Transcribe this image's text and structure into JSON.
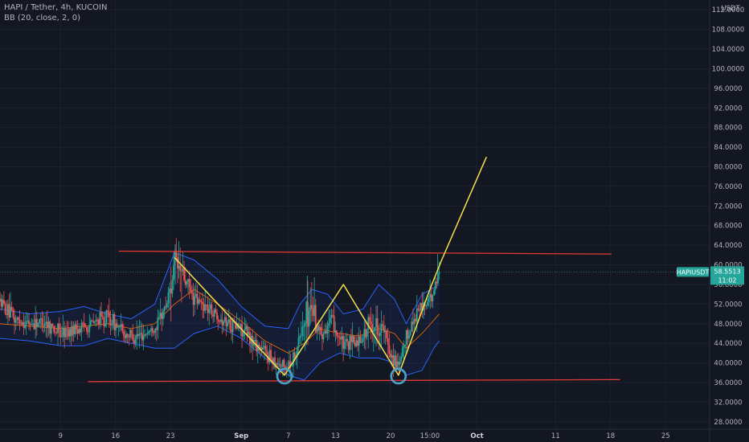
{
  "header": {
    "title": "HAPI / Tether, 4h, KUCOIN",
    "indicator": "BB (20, close, 2, 0)"
  },
  "colors": {
    "background": "#131722",
    "up": "#26a69a",
    "down": "#ef5350",
    "bb_band": "#2962ff",
    "bb_basis": "#ff6d00",
    "pattern": "#f7e14a",
    "level": "#e53935",
    "circle": "#4aa3c8",
    "price_tag": "#26a69a"
  },
  "chart_data": {
    "type": "candlestick",
    "y_unit": "USDT",
    "ylim": [
      26.5,
      114
    ],
    "y_ticks": [
      "112.0000",
      "108.0000",
      "104.0000",
      "100.0000",
      "96.0000",
      "92.0000",
      "88.0000",
      "84.0000",
      "80.0000",
      "76.0000",
      "72.0000",
      "68.0000",
      "64.0000",
      "60.0000",
      "56.0000",
      "52.0000",
      "48.0000",
      "44.0000",
      "40.0000",
      "36.0000",
      "32.0000",
      "28.0000"
    ],
    "x_ticks": [
      {
        "label": "9",
        "day": 9
      },
      {
        "label": "16",
        "day": 16
      },
      {
        "label": "23",
        "day": 23
      },
      {
        "label": "Sep",
        "day": 32,
        "bold": true
      },
      {
        "label": "7",
        "day": 38
      },
      {
        "label": "13",
        "day": 44
      },
      {
        "label": "20",
        "day": 51
      },
      {
        "label": "15:00",
        "day": 56
      },
      {
        "label": "Oct",
        "day": 62,
        "bold": true
      },
      {
        "label": "11",
        "day": 72
      },
      {
        "label": "18",
        "day": 79
      },
      {
        "label": "25",
        "day": 86
      }
    ],
    "xlim": [
      1.3,
      91.6
    ],
    "candle_range": [
      1.3,
      57.2
    ],
    "anchors": [
      [
        1.3,
        52.5
      ],
      [
        3,
        49
      ],
      [
        5,
        48
      ],
      [
        7,
        48.5
      ],
      [
        9,
        46
      ],
      [
        11,
        47
      ],
      [
        13,
        48
      ],
      [
        15,
        49.5
      ],
      [
        17,
        46
      ],
      [
        19,
        45.5
      ],
      [
        21,
        47
      ],
      [
        22.5,
        52
      ],
      [
        23.5,
        60
      ],
      [
        24.5,
        58
      ],
      [
        26,
        53
      ],
      [
        28,
        51
      ],
      [
        30,
        48.5
      ],
      [
        32,
        47
      ],
      [
        34,
        43.5
      ],
      [
        36,
        41
      ],
      [
        37.5,
        39
      ],
      [
        38.5,
        40.5
      ],
      [
        40,
        48
      ],
      [
        41,
        52
      ],
      [
        42,
        46
      ],
      [
        43.5,
        48.5
      ],
      [
        45,
        43.5
      ],
      [
        47,
        44.5
      ],
      [
        48.5,
        48
      ],
      [
        50,
        47
      ],
      [
        51,
        42
      ],
      [
        52,
        38.5
      ],
      [
        53,
        45
      ],
      [
        54.5,
        51
      ],
      [
        56,
        52.5
      ],
      [
        57.2,
        58.5
      ]
    ],
    "bollinger": {
      "period": 20,
      "stddev": 2,
      "upper": [
        [
          1.3,
          51
        ],
        [
          5,
          50
        ],
        [
          9,
          50.5
        ],
        [
          12,
          51.5
        ],
        [
          15,
          50
        ],
        [
          18,
          49
        ],
        [
          21,
          52
        ],
        [
          23.5,
          62.5
        ],
        [
          26,
          61
        ],
        [
          29,
          57
        ],
        [
          32,
          51.5
        ],
        [
          35,
          47.5
        ],
        [
          38,
          47
        ],
        [
          39.5,
          52
        ],
        [
          41,
          55
        ],
        [
          43,
          54
        ],
        [
          45,
          50
        ],
        [
          47.5,
          51
        ],
        [
          49.5,
          56
        ],
        [
          51.5,
          53
        ],
        [
          53,
          48
        ],
        [
          55,
          54
        ],
        [
          57.2,
          56
        ]
      ],
      "basis": [
        [
          1.3,
          48
        ],
        [
          5,
          47.5
        ],
        [
          9,
          47
        ],
        [
          12,
          47.5
        ],
        [
          15,
          48
        ],
        [
          18,
          47
        ],
        [
          21,
          48
        ],
        [
          23.5,
          52
        ],
        [
          26,
          55
        ],
        [
          29,
          52
        ],
        [
          32,
          48.5
        ],
        [
          35,
          44.5
        ],
        [
          38,
          42
        ],
        [
          40,
          44
        ],
        [
          42,
          47
        ],
        [
          44.5,
          46
        ],
        [
          47,
          45.5
        ],
        [
          49.5,
          47
        ],
        [
          51.5,
          46
        ],
        [
          53,
          43
        ],
        [
          55,
          46
        ],
        [
          57.2,
          50
        ]
      ],
      "lower": [
        [
          1.3,
          45
        ],
        [
          5,
          44.5
        ],
        [
          9,
          43.5
        ],
        [
          12,
          43.5
        ],
        [
          15,
          45
        ],
        [
          18,
          44
        ],
        [
          21,
          43
        ],
        [
          23.5,
          43
        ],
        [
          26,
          46
        ],
        [
          29,
          47.5
        ],
        [
          32,
          45
        ],
        [
          35,
          41
        ],
        [
          38,
          37.5
        ],
        [
          40,
          36.5
        ],
        [
          42,
          40
        ],
        [
          44.5,
          42
        ],
        [
          47,
          41
        ],
        [
          49.5,
          41
        ],
        [
          51.5,
          40
        ],
        [
          53,
          37.5
        ],
        [
          55,
          38.5
        ],
        [
          56.5,
          43
        ],
        [
          57.2,
          44.5
        ]
      ]
    },
    "pattern_line": [
      [
        23.5,
        61.5
      ],
      [
        37.5,
        37.5
      ],
      [
        45,
        56
      ],
      [
        52,
        37.5
      ],
      [
        56,
        55
      ],
      [
        57.5,
        61
      ],
      [
        63.2,
        82
      ]
    ],
    "support_line": [
      [
        12.5,
        36.2
      ],
      [
        80.2,
        36.6
      ]
    ],
    "resistance_line": [
      [
        16.4,
        62.8
      ],
      [
        79.1,
        62.2
      ]
    ],
    "circles": [
      [
        37.5,
        37.3
      ],
      [
        52,
        37.3
      ]
    ],
    "last_price": {
      "value": 58.5513,
      "symbol": "HAPIUSDT",
      "price_label": "58.5513",
      "countdown": "11:02"
    }
  }
}
